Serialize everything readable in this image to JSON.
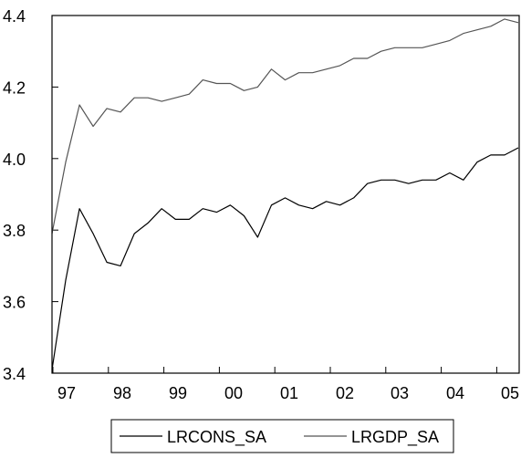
{
  "chart_data": {
    "type": "line",
    "title": "",
    "xlabel": "",
    "ylabel": "",
    "x_tick_labels": [
      "97",
      "98",
      "99",
      "00",
      "01",
      "02",
      "03",
      "04",
      "05"
    ],
    "y_tick_labels": [
      "3.4",
      "3.6",
      "3.8",
      "4.0",
      "4.2",
      "4.4"
    ],
    "y_ticks": [
      3.4,
      3.6,
      3.8,
      4.0,
      4.2,
      4.4
    ],
    "ylim": [
      3.4,
      4.4
    ],
    "grid": false,
    "legend_position": "bottom",
    "series": [
      {
        "name": "LRCONS_SA",
        "color": "#000000",
        "values": [
          3.41,
          3.66,
          3.86,
          3.79,
          3.71,
          3.7,
          3.79,
          3.82,
          3.86,
          3.83,
          3.83,
          3.86,
          3.85,
          3.87,
          3.84,
          3.78,
          3.87,
          3.89,
          3.87,
          3.86,
          3.88,
          3.87,
          3.89,
          3.93,
          3.94,
          3.94,
          3.93,
          3.94,
          3.94,
          3.96,
          3.94,
          3.99,
          4.01,
          4.01,
          4.03
        ]
      },
      {
        "name": "LRGDP_SA",
        "color": "#555555",
        "values": [
          3.79,
          3.99,
          4.15,
          4.09,
          4.14,
          4.13,
          4.17,
          4.17,
          4.16,
          4.17,
          4.18,
          4.22,
          4.21,
          4.21,
          4.19,
          4.2,
          4.25,
          4.22,
          4.24,
          4.24,
          4.25,
          4.26,
          4.28,
          4.28,
          4.3,
          4.31,
          4.31,
          4.31,
          4.32,
          4.33,
          4.35,
          4.36,
          4.37,
          4.39,
          4.38
        ]
      }
    ]
  }
}
